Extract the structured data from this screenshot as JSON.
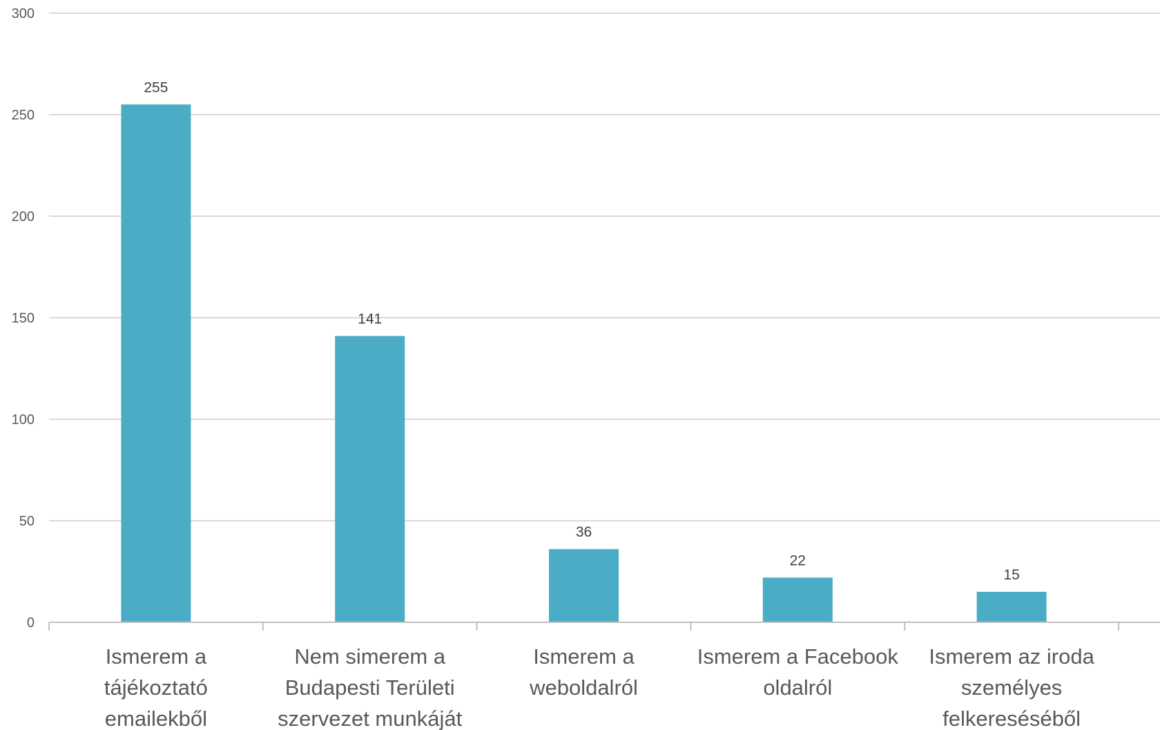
{
  "chart_data": {
    "type": "bar",
    "title": "",
    "xlabel": "",
    "ylabel": "",
    "ylim": [
      0,
      300
    ],
    "yticks": [
      0,
      50,
      100,
      150,
      200,
      250,
      300
    ],
    "grid": true,
    "legend": "none",
    "bar_color": "#4bacc6",
    "categories": [
      [
        "Ismerem a",
        "tájékoztató",
        "emailekből"
      ],
      [
        "Nem simerem a",
        "Budapesti Területi",
        "szervezet munkáját"
      ],
      [
        "Ismerem a",
        "weboldalról"
      ],
      [
        "Ismerem a Facebook",
        "oldalról"
      ],
      [
        "Ismerem az iroda",
        "személyes",
        "felkereséséből"
      ]
    ],
    "values": [
      255,
      141,
      36,
      22,
      15
    ]
  }
}
